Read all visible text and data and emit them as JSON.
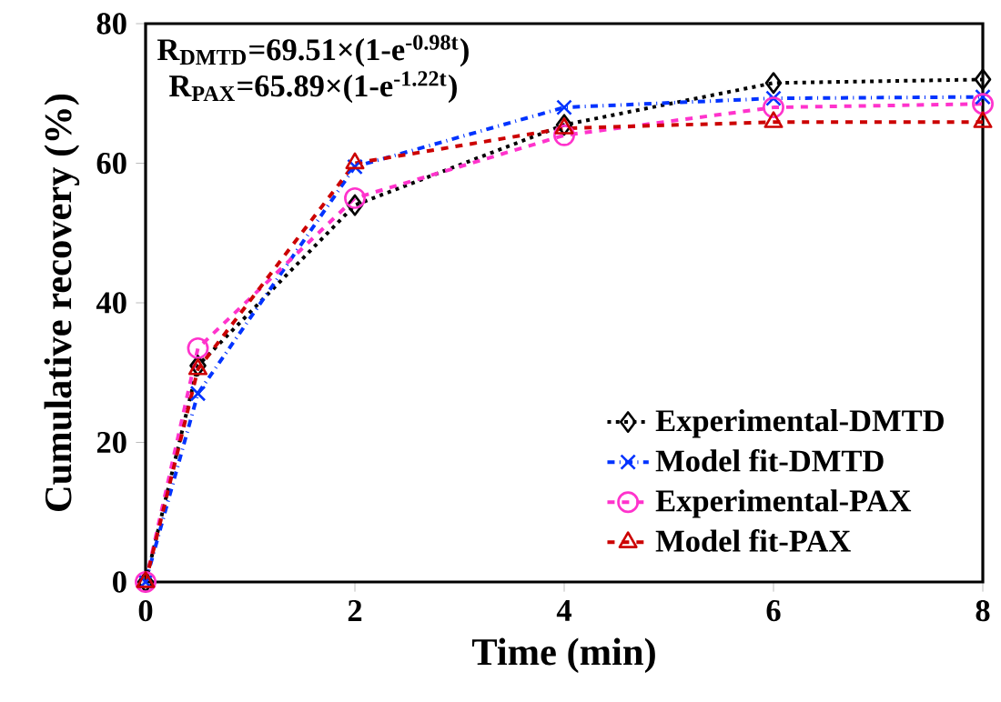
{
  "chart_data": {
    "type": "line",
    "xlabel": "Time (min)",
    "ylabel": "Cumulative recovery (%)",
    "x": [
      0,
      0.5,
      2,
      4,
      6,
      8
    ],
    "series": [
      {
        "name": "Experimental-DMTD",
        "color": "#000000",
        "marker": "diamond",
        "line_style": "dotted",
        "values": [
          0,
          31,
          54,
          65.5,
          71.5,
          72
        ]
      },
      {
        "name": "Model fit-DMTD",
        "color": "#0033ff",
        "marker": "cross",
        "line_style": "dashdot",
        "values": [
          0,
          27,
          59.5,
          68,
          69.3,
          69.5
        ]
      },
      {
        "name": "Experimental-PAX",
        "color": "#ff33cc",
        "marker": "circle",
        "line_style": "dashed",
        "values": [
          0,
          33.5,
          55,
          64,
          68,
          68.5
        ]
      },
      {
        "name": "Model fit-PAX",
        "color": "#cc0000",
        "marker": "triangle",
        "line_style": "dashed",
        "values": [
          0,
          30.5,
          60,
          65,
          65.9,
          65.9
        ]
      }
    ],
    "annotations": [
      "R$_{DMTD}$=69.51×(1-e$^{-0.98t}$)",
      "R$_{PAX}$=65.89×(1-e$^{-1.22t}$)"
    ],
    "xlim": [
      0,
      8
    ],
    "xticks": [
      0,
      2,
      4,
      6,
      8
    ],
    "ylim": [
      0,
      80
    ],
    "yticks": [
      0,
      20,
      40,
      60,
      80
    ],
    "grid": false,
    "legend": "bottom right"
  }
}
